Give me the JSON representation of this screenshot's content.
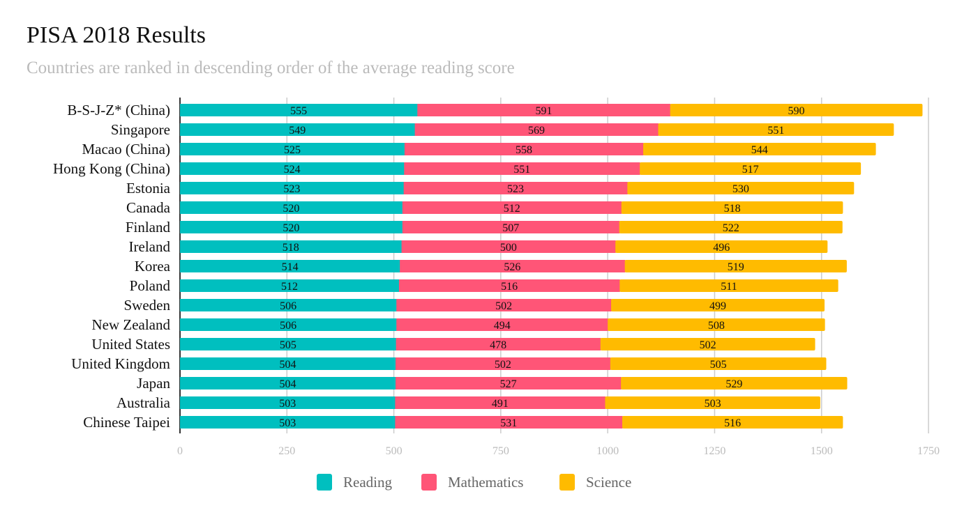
{
  "chart_data": {
    "type": "bar",
    "orientation": "horizontal",
    "stacked": true,
    "title": "PISA 2018 Results",
    "subtitle": "Countries are ranked in descending order of the average reading score",
    "categories": [
      "B-S-J-Z* (China)",
      "Singapore",
      "Macao (China)",
      "Hong Kong (China)",
      "Estonia",
      "Canada",
      "Finland",
      "Ireland",
      "Korea",
      "Poland",
      "Sweden",
      "New Zealand",
      "United States",
      "United Kingdom",
      "Japan",
      "Australia",
      "Chinese Taipei"
    ],
    "series": [
      {
        "name": "Reading",
        "color": "#00bfbf",
        "values": [
          555,
          549,
          525,
          524,
          523,
          520,
          520,
          518,
          514,
          512,
          506,
          506,
          505,
          504,
          504,
          503,
          503
        ]
      },
      {
        "name": "Mathematics",
        "color": "#ff5577",
        "values": [
          591,
          569,
          558,
          551,
          523,
          512,
          507,
          500,
          526,
          516,
          502,
          494,
          478,
          502,
          527,
          491,
          531
        ]
      },
      {
        "name": "Science",
        "color": "#ffbb00",
        "values": [
          590,
          551,
          544,
          517,
          530,
          518,
          522,
          496,
          519,
          511,
          499,
          508,
          502,
          505,
          529,
          503,
          516
        ]
      }
    ],
    "xlim": [
      0,
      1750
    ],
    "xticks": [
      0,
      250,
      500,
      750,
      1000,
      1250,
      1500,
      1750
    ],
    "grid": true,
    "data_labels": true,
    "legend_position": "bottom"
  }
}
